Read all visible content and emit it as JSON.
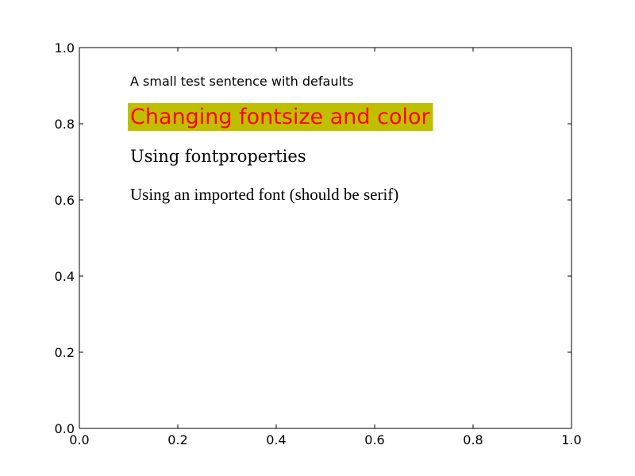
{
  "chart_data": {
    "type": "scatter",
    "title": "",
    "xlabel": "",
    "ylabel": "",
    "xlim": [
      0.0,
      1.0
    ],
    "ylim": [
      0.0,
      1.0
    ],
    "x_ticks": [
      0.0,
      0.2,
      0.4,
      0.6,
      0.8,
      1.0
    ],
    "y_ticks": [
      0.0,
      0.2,
      0.4,
      0.6,
      0.8,
      1.0
    ],
    "x_tick_labels": [
      "0.0",
      "0.2",
      "0.4",
      "0.6",
      "0.8",
      "1.0"
    ],
    "y_tick_labels": [
      "0.0",
      "0.2",
      "0.4",
      "0.6",
      "0.8",
      "1.0"
    ],
    "grid": false,
    "series": [],
    "annotations": [
      {
        "text": "A small test sentence with defaults",
        "x": 0.1,
        "y": 0.9,
        "style": "default"
      },
      {
        "text": "Changing fontsize and color",
        "x": 0.1,
        "y": 0.8,
        "style": "large-red-on-olive",
        "color": "#ff0000",
        "background": "#bfbf00"
      },
      {
        "text": "Using fontproperties",
        "x": 0.1,
        "y": 0.7,
        "style": "serif"
      },
      {
        "text": "Using an imported font (should be serif)",
        "x": 0.1,
        "y": 0.6,
        "style": "serif-imported"
      }
    ]
  }
}
